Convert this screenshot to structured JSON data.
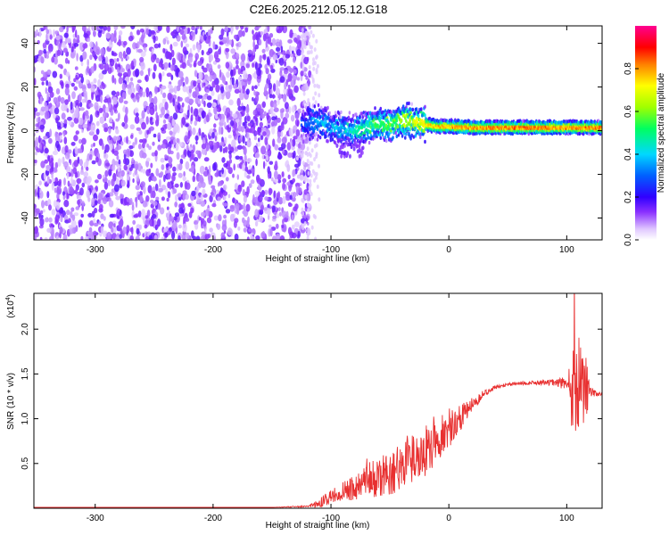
{
  "title": "C2E6.2025.212.05.12.G18",
  "chart_data": [
    {
      "type": "heatmap",
      "xlabel": "Height of straight line (km)",
      "ylabel": "Frequency (Hz)",
      "xlim": [
        -352,
        130
      ],
      "ylim": [
        -50,
        48
      ],
      "xticks": [
        -300,
        -200,
        -100,
        0,
        100
      ],
      "yticks": [
        -40,
        -20,
        0,
        20,
        40
      ],
      "xtick_labels": [
        "-300",
        "-200",
        "-100",
        "0",
        "100"
      ],
      "ytick_labels": [
        "-40",
        "-20",
        "0",
        "20",
        "40"
      ],
      "colorbar": {
        "label": "Normalized spectral amplitude",
        "range": [
          0,
          1
        ],
        "ticks": [
          0.0,
          0.2,
          0.4,
          0.6,
          0.8
        ],
        "tick_labels": [
          "0.0",
          "0.2",
          "0.4",
          "0.6",
          "0.8"
        ],
        "colors": [
          "#ffffff",
          "#e8d8ff",
          "#a060ff",
          "#7000e0",
          "#0000ff",
          "#00c8ff",
          "#00ff80",
          "#80ff00",
          "#ffff00",
          "#ff8000",
          "#ff0000",
          "#ff00a0"
        ]
      },
      "noise_region": {
        "x": [
          -352,
          -118
        ],
        "y": [
          -50,
          48
        ],
        "amplitude": 0.15
      },
      "signal_track": [
        {
          "x": -125,
          "f": 3,
          "amp": 0.3
        },
        {
          "x": -110,
          "f": 4,
          "amp": 0.45
        },
        {
          "x": -100,
          "f": 2,
          "amp": 0.4
        },
        {
          "x": -90,
          "f": 1,
          "amp": 0.45
        },
        {
          "x": -80,
          "f": 0,
          "amp": 0.5
        },
        {
          "x": -70,
          "f": 2,
          "amp": 0.55
        },
        {
          "x": -60,
          "f": 3,
          "amp": 0.6
        },
        {
          "x": -50,
          "f": 3,
          "amp": 0.65
        },
        {
          "x": -40,
          "f": 5,
          "amp": 0.7
        },
        {
          "x": -30,
          "f": 4,
          "amp": 0.75
        },
        {
          "x": -20,
          "f": 3,
          "amp": 0.85
        },
        {
          "x": -10,
          "f": 2,
          "amp": 0.85
        },
        {
          "x": 0,
          "f": 2,
          "amp": 0.88
        },
        {
          "x": 20,
          "f": 1.5,
          "amp": 0.9
        },
        {
          "x": 50,
          "f": 1.5,
          "amp": 0.92
        },
        {
          "x": 80,
          "f": 1.5,
          "amp": 0.92
        },
        {
          "x": 100,
          "f": 1.5,
          "amp": 0.9
        },
        {
          "x": 130,
          "f": 1.5,
          "amp": 0.92
        }
      ]
    },
    {
      "type": "line",
      "xlabel": "Height of straight line (km)",
      "ylabel": "SNR (10 * v/v)",
      "scale_label": "(x10",
      "scale_exponent": "4",
      "xlim": [
        -352,
        130
      ],
      "ylim": [
        0,
        2.4
      ],
      "xticks": [
        -300,
        -200,
        -100,
        0,
        100
      ],
      "yticks": [
        0.5,
        1.0,
        1.5,
        2.0
      ],
      "xtick_labels": [
        "-300",
        "-200",
        "-100",
        "0",
        "100"
      ],
      "ytick_labels": [
        "0.5",
        "1.0",
        "1.5",
        "2.0"
      ],
      "color": "#e83030",
      "series": [
        {
          "x": [
            -352,
            -300,
            -250,
            -200,
            -150,
            -120,
            -110,
            -100,
            -90,
            -80,
            -70,
            -60,
            -50,
            -40,
            -30,
            -20,
            -10,
            0,
            10,
            20,
            30,
            40,
            50,
            60,
            70,
            80,
            90,
            100,
            105,
            110,
            115,
            120,
            125,
            130
          ],
          "y": [
            0.01,
            0.01,
            0.01,
            0.01,
            0.01,
            0.02,
            0.05,
            0.12,
            0.18,
            0.22,
            0.28,
            0.32,
            0.38,
            0.45,
            0.52,
            0.6,
            0.7,
            0.85,
            1.0,
            1.15,
            1.28,
            1.35,
            1.38,
            1.39,
            1.4,
            1.4,
            1.4,
            1.38,
            1.25,
            1.35,
            1.3,
            1.3,
            1.27,
            1.27
          ],
          "noise": [
            0,
            0,
            0,
            0,
            0,
            0.01,
            0.05,
            0.08,
            0.1,
            0.15,
            0.2,
            0.22,
            0.25,
            0.3,
            0.3,
            0.3,
            0.25,
            0.2,
            0.15,
            0.08,
            0.04,
            0.02,
            0.02,
            0.02,
            0.02,
            0.03,
            0.04,
            0.08,
            0.5,
            0.6,
            0.6,
            0.06,
            0.03,
            0.02
          ]
        }
      ]
    }
  ]
}
